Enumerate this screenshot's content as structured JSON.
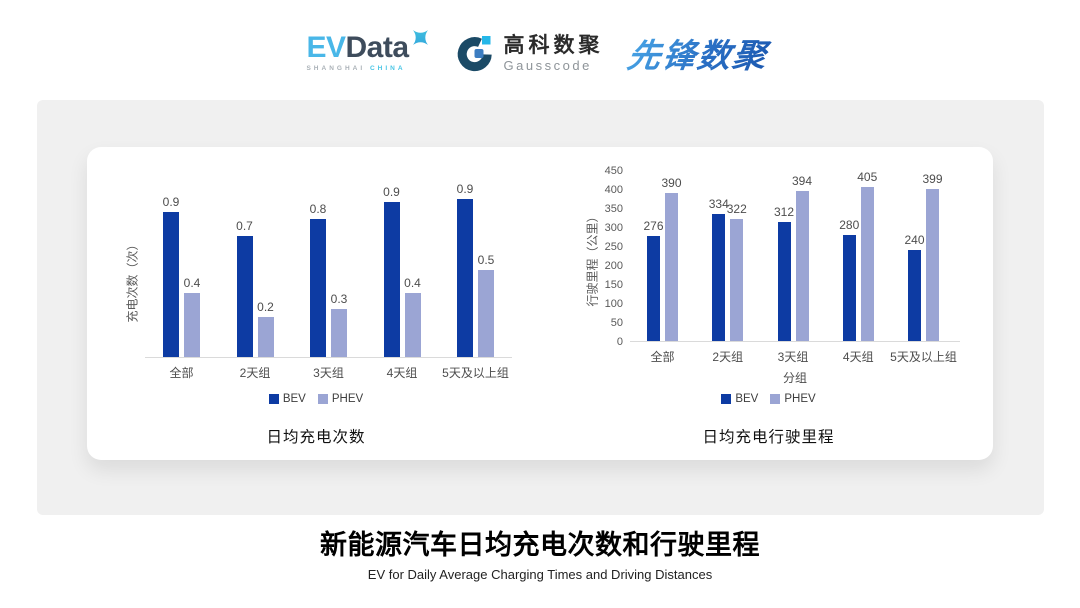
{
  "header": {
    "logos": {
      "evdata": {
        "ev": "EV",
        "data": "Data",
        "sub_left": "SHANGHAI",
        "sub_right": "CHINA"
      },
      "gausscode": {
        "cn": "高科数聚",
        "en": "Gausscode"
      },
      "pioneer": {
        "text": "先锋数聚"
      }
    },
    "icons": {
      "evdata_sparkle": "sparkle-x-icon",
      "gausscode_mark": "g-ring-icon"
    }
  },
  "colors": {
    "bev": "#0d3ba3",
    "phev": "#9ba5d4",
    "evdata_blue": "#49b7e8",
    "evdata_dark": "#3e4c5c",
    "pioneer_blue": "#2a6fc4",
    "band_gray": "#f0f0f0"
  },
  "chart_data": [
    {
      "type": "bar",
      "title": "日均充电次数",
      "ylabel": "充电次数（次）",
      "xlabel": "",
      "categories": [
        "全部",
        "2天组",
        "3天组",
        "4天组",
        "5天及以上组"
      ],
      "series": [
        {
          "name": "BEV",
          "color": "#0d3ba3",
          "values": [
            0.9,
            0.7,
            0.8,
            0.9,
            0.9
          ],
          "visual_values": [
            0.9,
            0.75,
            0.86,
            0.96,
            0.98
          ]
        },
        {
          "name": "PHEV",
          "color": "#9ba5d4",
          "values": [
            0.4,
            0.2,
            0.3,
            0.4,
            0.5
          ],
          "visual_values": [
            0.4,
            0.25,
            0.3,
            0.4,
            0.54
          ]
        }
      ],
      "ylim": [
        0,
        1
      ],
      "yticks": [],
      "grid": false,
      "legend_position": "bottom",
      "data_labels": true
    },
    {
      "type": "bar",
      "title": "日均充电行驶里程",
      "ylabel": "行驶里程（公里）",
      "xlabel": "分组",
      "categories": [
        "全部",
        "2天组",
        "3天组",
        "4天组",
        "5天及以上组"
      ],
      "series": [
        {
          "name": "BEV",
          "color": "#0d3ba3",
          "values": [
            276,
            334,
            312,
            280,
            240
          ]
        },
        {
          "name": "PHEV",
          "color": "#9ba5d4",
          "values": [
            390,
            322,
            394,
            405,
            399
          ]
        }
      ],
      "ylim": [
        0,
        450
      ],
      "yticks": [
        0,
        50,
        100,
        150,
        200,
        250,
        300,
        350,
        400,
        450
      ],
      "grid": false,
      "legend_position": "bottom",
      "data_labels": true
    }
  ],
  "footer": {
    "title": "新能源汽车日均充电次数和行驶里程",
    "subtitle": "EV for Daily Average Charging Times and Driving Distances"
  }
}
